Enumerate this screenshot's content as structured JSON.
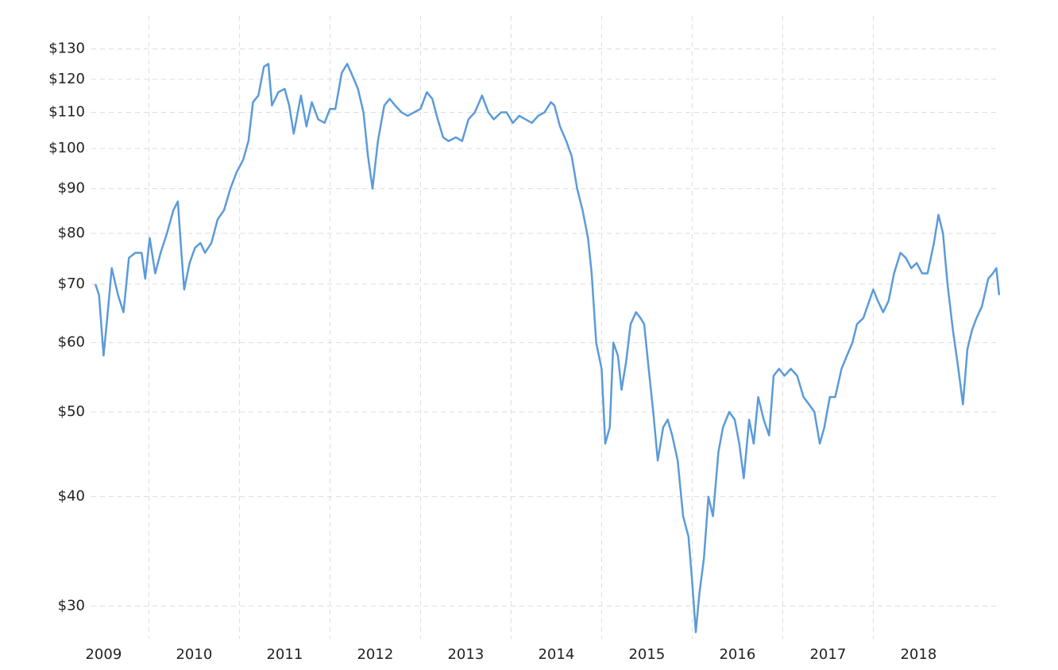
{
  "chart_data": {
    "type": "line",
    "ylog": true,
    "grid": true,
    "xlim": [
      2009.4,
      2019.4
    ],
    "xticks": [
      2009,
      2010,
      2011,
      2012,
      2013,
      2014,
      2015,
      2016,
      2017,
      2018
    ],
    "ylim": [
      27.5,
      136
    ],
    "yticks": [
      {
        "value": 30,
        "label": "$30"
      },
      {
        "value": 40,
        "label": "$40"
      },
      {
        "value": 50,
        "label": "$50"
      },
      {
        "value": 60,
        "label": "$60"
      },
      {
        "value": 70,
        "label": "$70"
      },
      {
        "value": 80,
        "label": "$80"
      },
      {
        "value": 90,
        "label": "$90"
      },
      {
        "value": 100,
        "label": "$100"
      },
      {
        "value": 110,
        "label": "$110"
      },
      {
        "value": 120,
        "label": "$120"
      },
      {
        "value": 130,
        "label": "$130"
      }
    ],
    "x": [
      2009.41,
      2009.45,
      2009.5,
      2009.54,
      2009.59,
      2009.66,
      2009.72,
      2009.78,
      2009.85,
      2009.92,
      2009.96,
      2010.01,
      2010.07,
      2010.13,
      2010.2,
      2010.27,
      2010.32,
      2010.36,
      2010.39,
      2010.45,
      2010.51,
      2010.57,
      2010.62,
      2010.69,
      2010.76,
      2010.83,
      2010.9,
      2010.97,
      2011.04,
      2011.1,
      2011.15,
      2011.21,
      2011.27,
      2011.32,
      2011.36,
      2011.43,
      2011.5,
      2011.55,
      2011.6,
      2011.68,
      2011.74,
      2011.8,
      2011.87,
      2011.94,
      2012.0,
      2012.06,
      2012.13,
      2012.19,
      2012.25,
      2012.31,
      2012.37,
      2012.42,
      2012.47,
      2012.53,
      2012.6,
      2012.66,
      2012.72,
      2012.79,
      2012.86,
      2012.93,
      2013.0,
      2013.07,
      2013.13,
      2013.19,
      2013.25,
      2013.31,
      2013.39,
      2013.46,
      2013.53,
      2013.6,
      2013.68,
      2013.75,
      2013.81,
      2013.89,
      2013.95,
      2014.02,
      2014.09,
      2014.16,
      2014.23,
      2014.3,
      2014.37,
      2014.44,
      2014.48,
      2014.54,
      2014.61,
      2014.67,
      2014.73,
      2014.79,
      2014.85,
      2014.89,
      2014.94,
      2015.0,
      2015.04,
      2015.09,
      2015.13,
      2015.18,
      2015.22,
      2015.27,
      2015.32,
      2015.38,
      2015.43,
      2015.47,
      2015.52,
      2015.57,
      2015.62,
      2015.68,
      2015.73,
      2015.78,
      2015.84,
      2015.9,
      2015.96,
      2016.0,
      2016.04,
      2016.08,
      2016.13,
      2016.18,
      2016.23,
      2016.29,
      2016.34,
      2016.41,
      2016.47,
      2016.52,
      2016.57,
      2016.63,
      2016.68,
      2016.73,
      2016.79,
      2016.85,
      2016.9,
      2016.96,
      2017.02,
      2017.09,
      2017.16,
      2017.23,
      2017.29,
      2017.35,
      2017.41,
      2017.46,
      2017.52,
      2017.58,
      2017.65,
      2017.71,
      2017.77,
      2017.82,
      2017.89,
      2018.0,
      2018.05,
      2018.11,
      2018.17,
      2018.23,
      2018.3,
      2018.36,
      2018.42,
      2018.48,
      2018.54,
      2018.6,
      2018.67,
      2018.72,
      2018.77,
      2018.82,
      2018.88,
      2018.93,
      2018.96,
      2018.99,
      2019.04,
      2019.09,
      2019.14,
      2019.2,
      2019.27,
      2019.32,
      2019.36,
      2019.39
    ],
    "series": [
      {
        "color": "#5b9bd8",
        "values": [
          70,
          68,
          58,
          64,
          73,
          68,
          65,
          75,
          76,
          76,
          71,
          79,
          72,
          76,
          80,
          85,
          87,
          76,
          69,
          74,
          77,
          78,
          76,
          78,
          83,
          85,
          90,
          94,
          97,
          102,
          113,
          115,
          124,
          125,
          112,
          116,
          117,
          112,
          104,
          115,
          106,
          113,
          108,
          107,
          111,
          111,
          122,
          125,
          121,
          117,
          110,
          98,
          90,
          102,
          112,
          114,
          112,
          110,
          109,
          110,
          111,
          116,
          114,
          108,
          103,
          102,
          103,
          102,
          108,
          110,
          115,
          110,
          108,
          110,
          110,
          107,
          109,
          108,
          107,
          109,
          110,
          113,
          112,
          106,
          102,
          98,
          90,
          85,
          79,
          72,
          60,
          56,
          46,
          48,
          60,
          58,
          53,
          57,
          63,
          65,
          64,
          63,
          56,
          50,
          44,
          48,
          49,
          47,
          44,
          38,
          36,
          32,
          28,
          31,
          34,
          40,
          38,
          45,
          48,
          50,
          49,
          46,
          42,
          49,
          46,
          52,
          49,
          47,
          55,
          56,
          55,
          56,
          55,
          52,
          51,
          50,
          46,
          48,
          52,
          52,
          56,
          58,
          60,
          63,
          64,
          69,
          67,
          65,
          67,
          72,
          76,
          75,
          73,
          74,
          72,
          72,
          78,
          84,
          80,
          70,
          62,
          57,
          54,
          51,
          59,
          62,
          64,
          66,
          71,
          72,
          73,
          68
        ]
      }
    ]
  }
}
